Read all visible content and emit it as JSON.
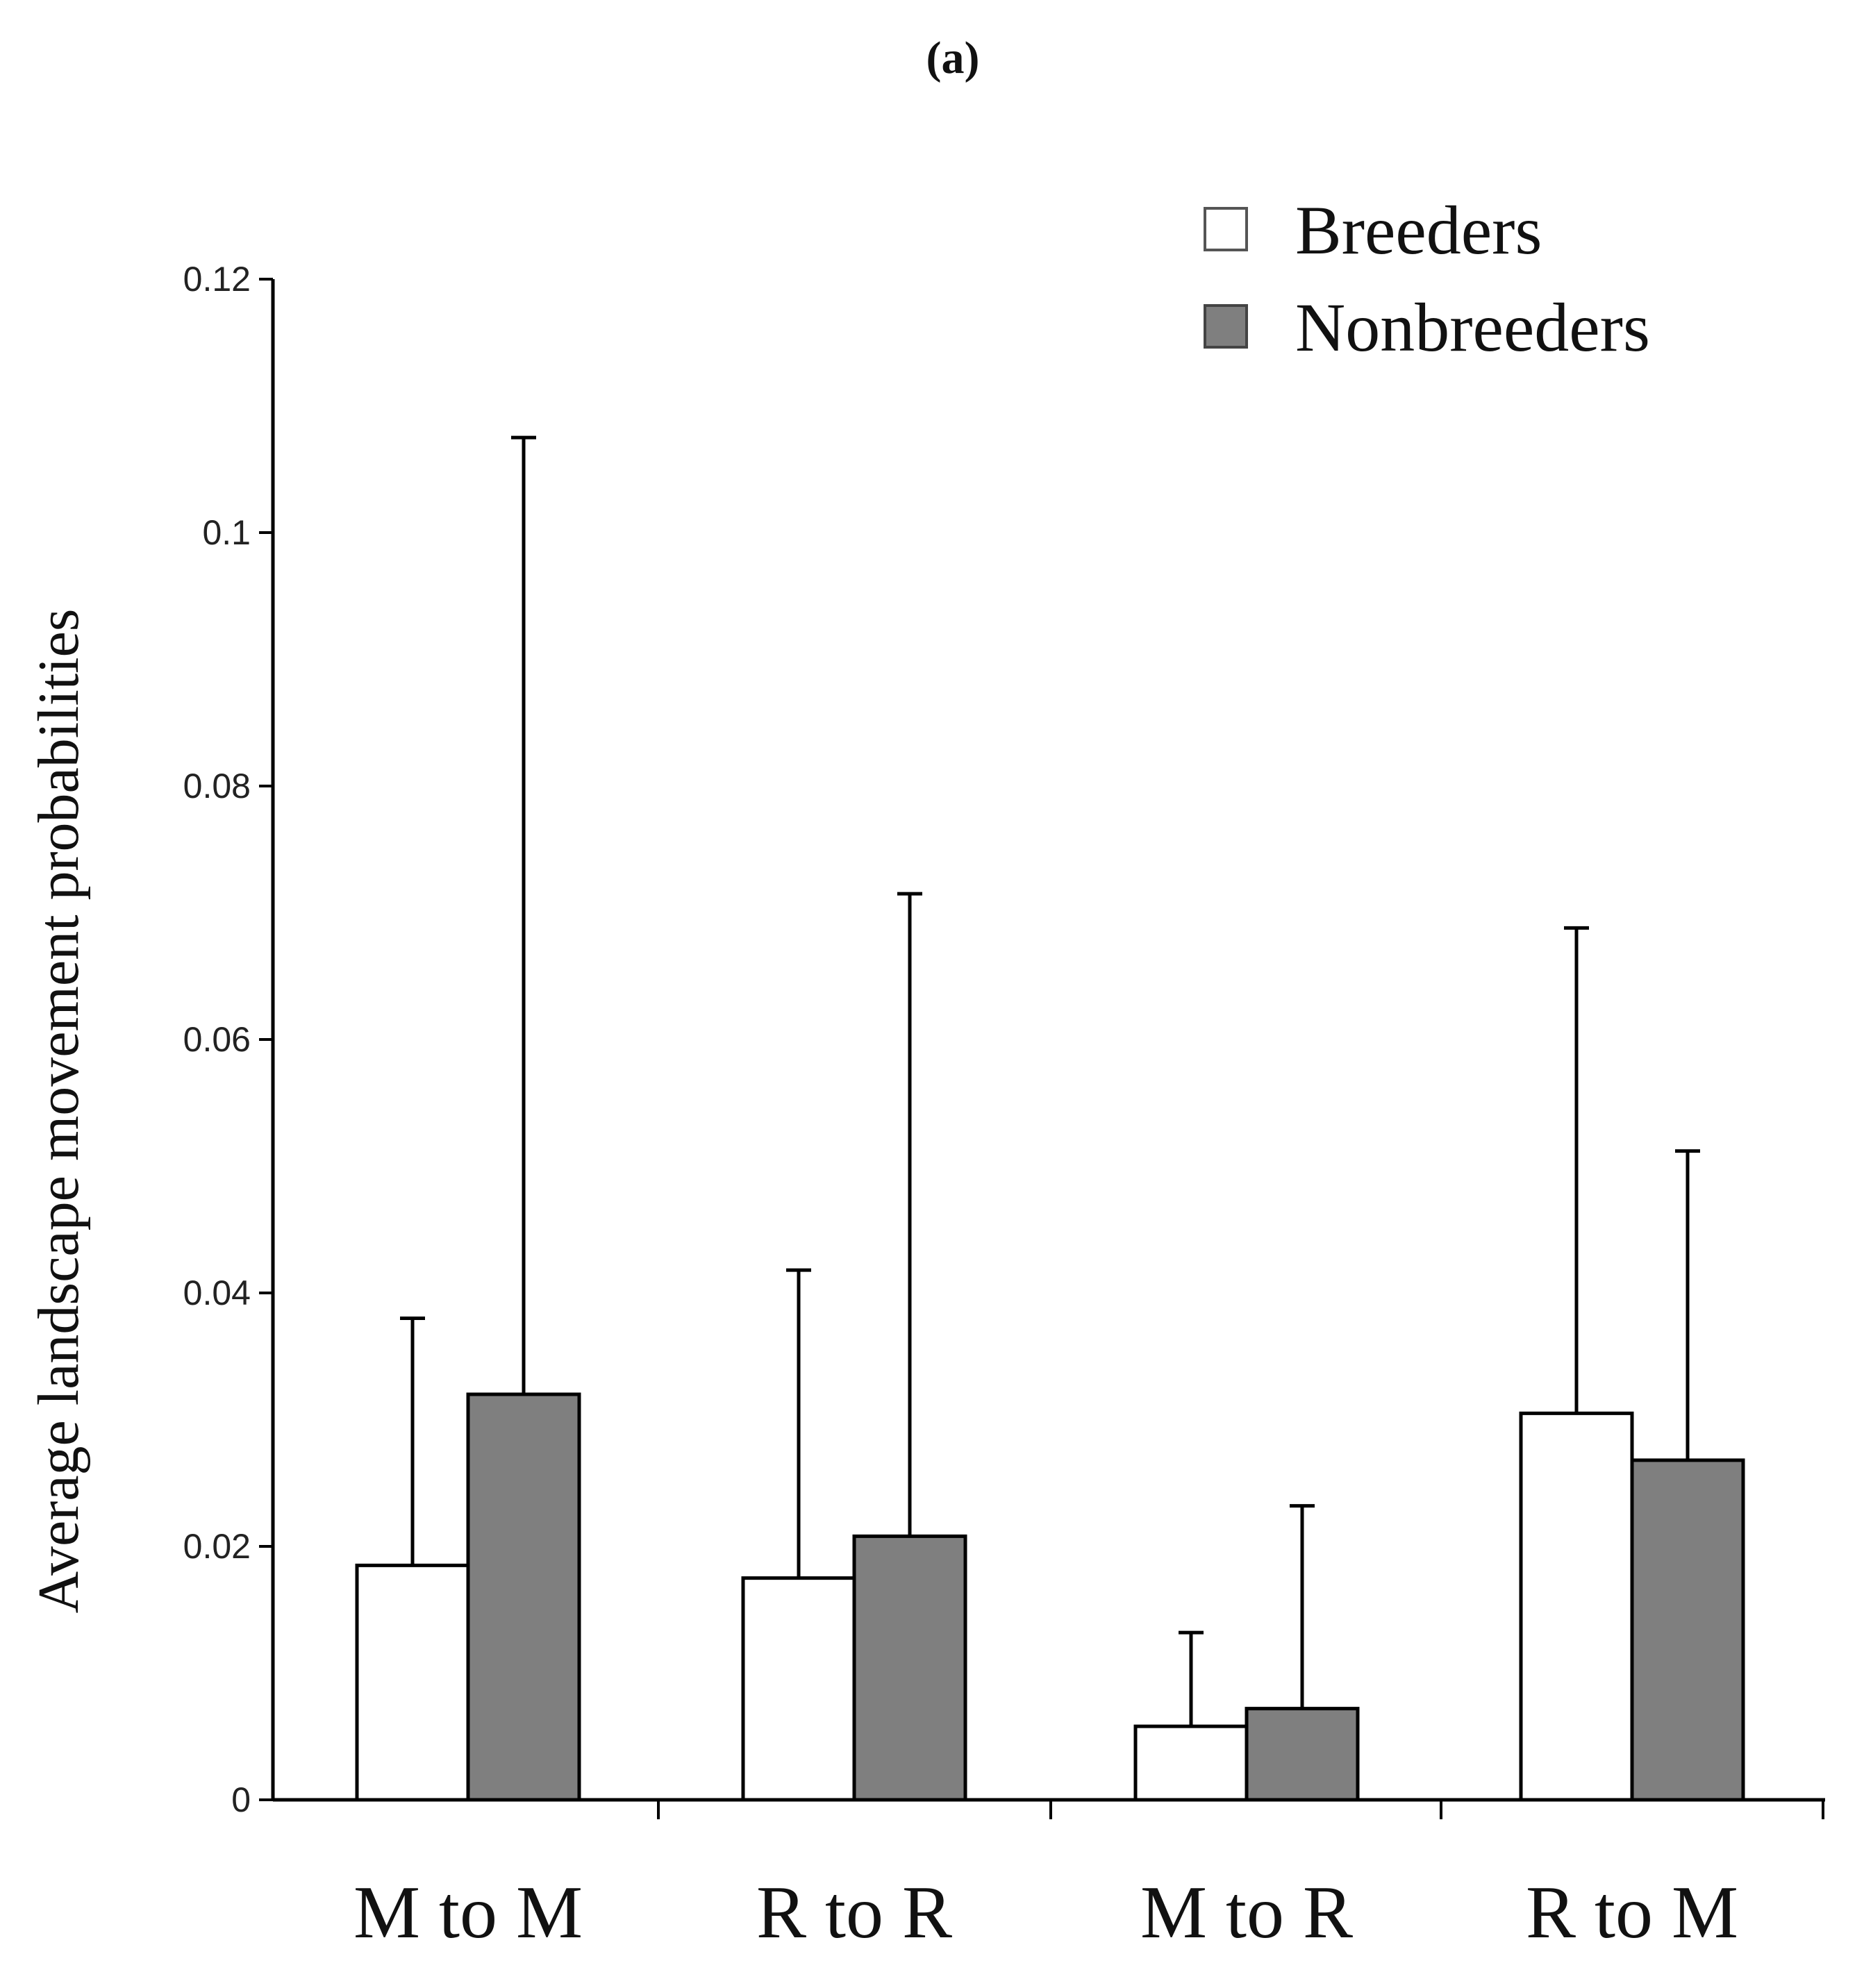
{
  "panel_label": "(a)",
  "chart_data": {
    "type": "bar",
    "title": "",
    "xlabel": "",
    "ylabel": "Average landscape movement probabilities",
    "ylim": [
      0,
      0.12
    ],
    "yticks": [
      0,
      0.02,
      0.04,
      0.06,
      0.08,
      0.1,
      0.12
    ],
    "ytick_labels": [
      "0",
      "0.02",
      "0.04",
      "0.06",
      "0.08",
      "0.1",
      "0.12"
    ],
    "categories": [
      "M to M",
      "R to R",
      "M to R",
      "R to M"
    ],
    "legend_position": "top-right",
    "series": [
      {
        "name": "Breeders",
        "color": "#ffffff",
        "values": [
          0.0185,
          0.0175,
          0.0058,
          0.0305
        ],
        "error_upper": [
          0.038,
          0.0418,
          0.0132,
          0.0688
        ]
      },
      {
        "name": "Nonbreeders",
        "color": "#7f7f7f",
        "values": [
          0.032,
          0.0208,
          0.0072,
          0.0268
        ],
        "error_upper": [
          0.1075,
          0.0715,
          0.0232,
          0.0512
        ]
      }
    ]
  }
}
